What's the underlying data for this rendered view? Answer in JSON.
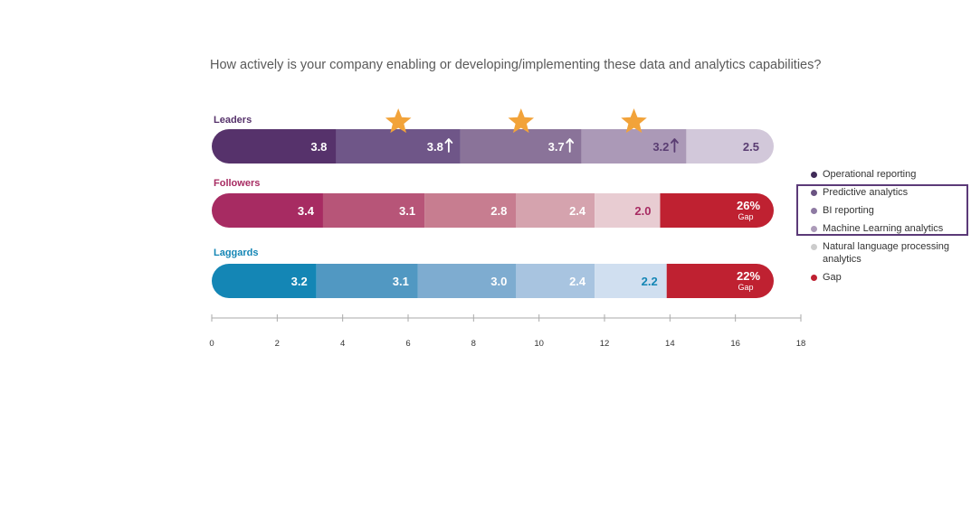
{
  "question": "How actively is your company enabling or developing/implementing these data and analytics capabilities?",
  "colors": {
    "leaders": [
      "#56326b",
      "#6f5688",
      "#8a7399",
      "#ab99b7",
      "#d2c8da"
    ],
    "followers": [
      "#a72b62",
      "#b75578",
      "#c77d90",
      "#d5a3ae",
      "#e8ccd2"
    ],
    "laggards": [
      "#1486b5",
      "#5198c2",
      "#7eacd0",
      "#a8c4e0",
      "#d0dff0"
    ],
    "gap": "#bf2131",
    "star": "#f2a33a",
    "axis": "#aaaaaa",
    "legend_box": "#5b3a78"
  },
  "legend": [
    {
      "label": "Operational reporting",
      "color": "#402b58"
    },
    {
      "label": "Predictive analytics",
      "color": "#6a5382"
    },
    {
      "label": "BI reporting",
      "color": "#8e7aa3"
    },
    {
      "label": "Machine Learning analytics",
      "color": "#ac9bb9"
    },
    {
      "label": "Natural language processing analytics",
      "color": "#cccccc"
    },
    {
      "label": "Gap",
      "color": "#bf2131"
    }
  ],
  "chart_data": {
    "type": "bar",
    "orientation": "horizontal",
    "stacked": true,
    "xlim": [
      0,
      18
    ],
    "xticks": [
      0,
      2,
      4,
      6,
      8,
      10,
      12,
      14,
      16,
      18
    ],
    "series_names": [
      "Operational reporting",
      "Predictive analytics",
      "BI reporting",
      "Machine Learning analytics",
      "Natural language processing analytics"
    ],
    "groups": [
      {
        "name": "Leaders",
        "color": "#56326b",
        "values": [
          3.8,
          3.8,
          3.7,
          3.2,
          2.5
        ],
        "labels": [
          "3.8",
          "3.8",
          "3.7",
          "3.2",
          "2.5"
        ],
        "up_arrows": [
          false,
          true,
          true,
          true,
          false
        ],
        "stars": [
          false,
          true,
          true,
          true,
          false
        ],
        "gap": null,
        "gap_value": null
      },
      {
        "name": "Followers",
        "color": "#a72b62",
        "values": [
          3.4,
          3.1,
          2.8,
          2.4,
          2.0
        ],
        "labels": [
          "3.4",
          "3.1",
          "2.8",
          "2.4",
          "2.0"
        ],
        "up_arrows": [
          false,
          false,
          false,
          false,
          false
        ],
        "stars": [
          false,
          false,
          false,
          false,
          false
        ],
        "gap": "26%",
        "gap_value": 26,
        "gap_label": "Gap"
      },
      {
        "name": "Laggards",
        "color": "#1486b5",
        "values": [
          3.2,
          3.1,
          3.0,
          2.4,
          2.2
        ],
        "labels": [
          "3.2",
          "3.1",
          "3.0",
          "2.4",
          "2.2"
        ],
        "up_arrows": [
          false,
          false,
          false,
          false,
          false
        ],
        "stars": [
          false,
          false,
          false,
          false,
          false
        ],
        "gap": "22%",
        "gap_value": 22,
        "gap_label": "Gap"
      }
    ]
  }
}
